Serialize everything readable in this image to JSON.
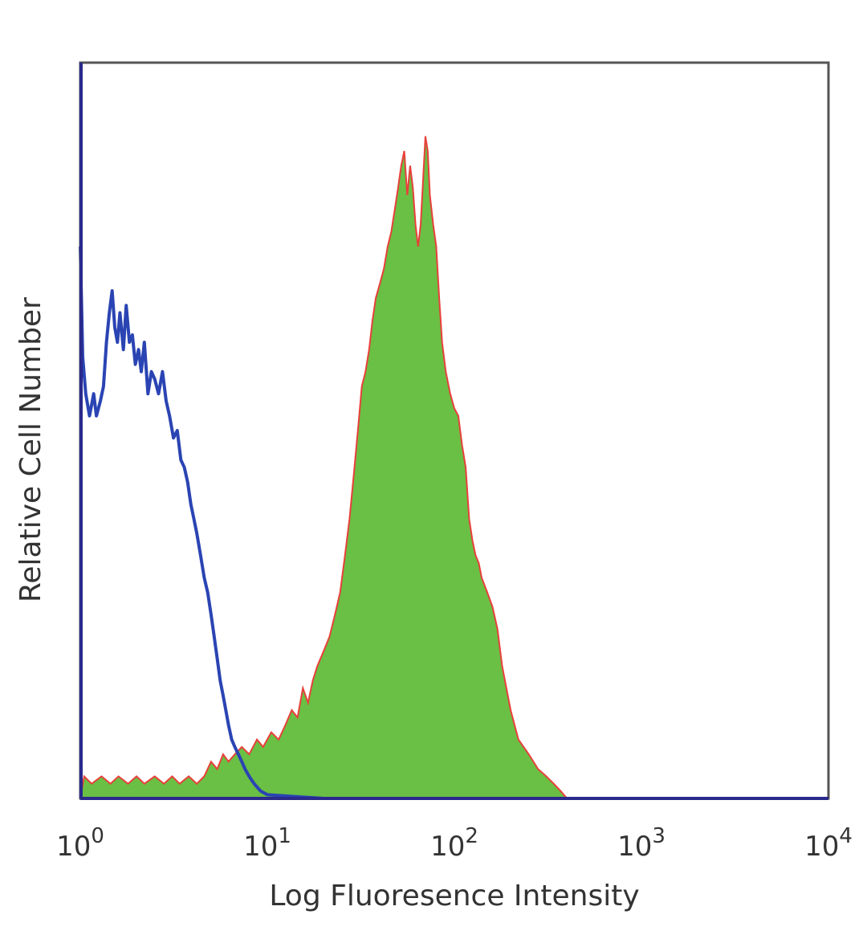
{
  "chart_data": {
    "type": "area",
    "xscale": "log",
    "xlim": [
      1,
      10000
    ],
    "ylim": [
      0,
      100
    ],
    "grid": false,
    "xlabel": "Log Fluoresence Intensity",
    "ylabel": "Relative Cell Number",
    "ticks": [
      {
        "value": 1,
        "base": "10",
        "exp": "0"
      },
      {
        "value": 10,
        "base": "10",
        "exp": "1"
      },
      {
        "value": 100,
        "base": "10",
        "exp": "2"
      },
      {
        "value": 1000,
        "base": "10",
        "exp": "3"
      },
      {
        "value": 10000,
        "base": "10",
        "exp": "4"
      }
    ],
    "series": [
      {
        "style": "filled",
        "fill": "#6abf45",
        "stroke": "#e8403a",
        "points": [
          [
            1.0,
            0
          ],
          [
            1.05,
            3
          ],
          [
            1.15,
            2
          ],
          [
            1.3,
            3
          ],
          [
            1.45,
            2
          ],
          [
            1.6,
            3
          ],
          [
            1.8,
            2
          ],
          [
            2.0,
            3
          ],
          [
            2.2,
            2
          ],
          [
            2.5,
            3
          ],
          [
            2.8,
            2
          ],
          [
            3.1,
            3
          ],
          [
            3.4,
            2
          ],
          [
            3.8,
            3
          ],
          [
            4.2,
            2
          ],
          [
            4.6,
            3
          ],
          [
            5.0,
            5
          ],
          [
            5.4,
            4
          ],
          [
            5.8,
            6
          ],
          [
            6.2,
            5
          ],
          [
            6.7,
            6
          ],
          [
            7.3,
            7
          ],
          [
            8.0,
            6
          ],
          [
            8.8,
            8
          ],
          [
            9.5,
            7
          ],
          [
            10.5,
            9
          ],
          [
            11.5,
            8
          ],
          [
            12.5,
            10
          ],
          [
            13.5,
            12
          ],
          [
            14.5,
            11
          ],
          [
            15.5,
            15
          ],
          [
            16.5,
            13
          ],
          [
            17.5,
            16
          ],
          [
            18.5,
            18
          ],
          [
            20,
            20
          ],
          [
            21.5,
            22
          ],
          [
            23,
            25
          ],
          [
            24.5,
            28
          ],
          [
            26,
            33
          ],
          [
            27.5,
            38
          ],
          [
            29,
            44
          ],
          [
            30.5,
            50
          ],
          [
            32,
            56
          ],
          [
            33.5,
            58
          ],
          [
            35,
            61
          ],
          [
            36.5,
            65
          ],
          [
            38,
            68
          ],
          [
            40,
            70
          ],
          [
            42,
            72
          ],
          [
            44,
            75
          ],
          [
            46,
            77
          ],
          [
            48,
            80
          ],
          [
            50,
            83
          ],
          [
            52,
            86
          ],
          [
            54,
            88
          ],
          [
            56,
            82
          ],
          [
            58,
            86
          ],
          [
            60,
            83
          ],
          [
            62,
            78
          ],
          [
            64,
            75
          ],
          [
            66,
            78
          ],
          [
            68,
            84
          ],
          [
            70,
            90
          ],
          [
            72,
            88
          ],
          [
            74,
            82
          ],
          [
            77,
            78
          ],
          [
            80,
            75
          ],
          [
            83,
            68
          ],
          [
            86,
            62
          ],
          [
            90,
            58
          ],
          [
            95,
            55
          ],
          [
            100,
            53
          ],
          [
            105,
            52
          ],
          [
            110,
            48
          ],
          [
            115,
            45
          ],
          [
            120,
            38
          ],
          [
            125,
            35
          ],
          [
            130,
            33
          ],
          [
            135,
            32
          ],
          [
            140,
            30
          ],
          [
            150,
            28
          ],
          [
            160,
            26
          ],
          [
            170,
            23
          ],
          [
            180,
            18
          ],
          [
            200,
            12
          ],
          [
            220,
            8
          ],
          [
            250,
            6
          ],
          [
            280,
            4
          ],
          [
            310,
            3
          ],
          [
            340,
            2
          ],
          [
            370,
            1
          ],
          [
            400,
            0
          ]
        ]
      },
      {
        "style": "line",
        "stroke": "#2a44b3",
        "points": [
          [
            1.0,
            75
          ],
          [
            1.03,
            60
          ],
          [
            1.07,
            55
          ],
          [
            1.12,
            52
          ],
          [
            1.18,
            55
          ],
          [
            1.22,
            52
          ],
          [
            1.28,
            54
          ],
          [
            1.33,
            56
          ],
          [
            1.38,
            62
          ],
          [
            1.43,
            66
          ],
          [
            1.48,
            69
          ],
          [
            1.53,
            64
          ],
          [
            1.58,
            62
          ],
          [
            1.63,
            66
          ],
          [
            1.7,
            61
          ],
          [
            1.76,
            67
          ],
          [
            1.83,
            62
          ],
          [
            1.9,
            63
          ],
          [
            1.97,
            59
          ],
          [
            2.05,
            61
          ],
          [
            2.12,
            58
          ],
          [
            2.2,
            62
          ],
          [
            2.3,
            55
          ],
          [
            2.4,
            58
          ],
          [
            2.5,
            57
          ],
          [
            2.62,
            55
          ],
          [
            2.75,
            58
          ],
          [
            2.88,
            54
          ],
          [
            3.0,
            52
          ],
          [
            3.15,
            49
          ],
          [
            3.3,
            50
          ],
          [
            3.45,
            46
          ],
          [
            3.6,
            45
          ],
          [
            3.75,
            43
          ],
          [
            3.9,
            40
          ],
          [
            4.05,
            38
          ],
          [
            4.2,
            36
          ],
          [
            4.4,
            33
          ],
          [
            4.6,
            30
          ],
          [
            4.8,
            28
          ],
          [
            5.0,
            25
          ],
          [
            5.2,
            22
          ],
          [
            5.4,
            19
          ],
          [
            5.6,
            16
          ],
          [
            5.8,
            14
          ],
          [
            6.0,
            12
          ],
          [
            6.2,
            10
          ],
          [
            6.45,
            8
          ],
          [
            6.7,
            7
          ],
          [
            7.0,
            6
          ],
          [
            7.3,
            5
          ],
          [
            7.6,
            4
          ],
          [
            8.0,
            3
          ],
          [
            8.5,
            2
          ],
          [
            9.2,
            1
          ],
          [
            10.0,
            0.5
          ],
          [
            20,
            0
          ],
          [
            10000,
            0
          ]
        ]
      }
    ]
  }
}
